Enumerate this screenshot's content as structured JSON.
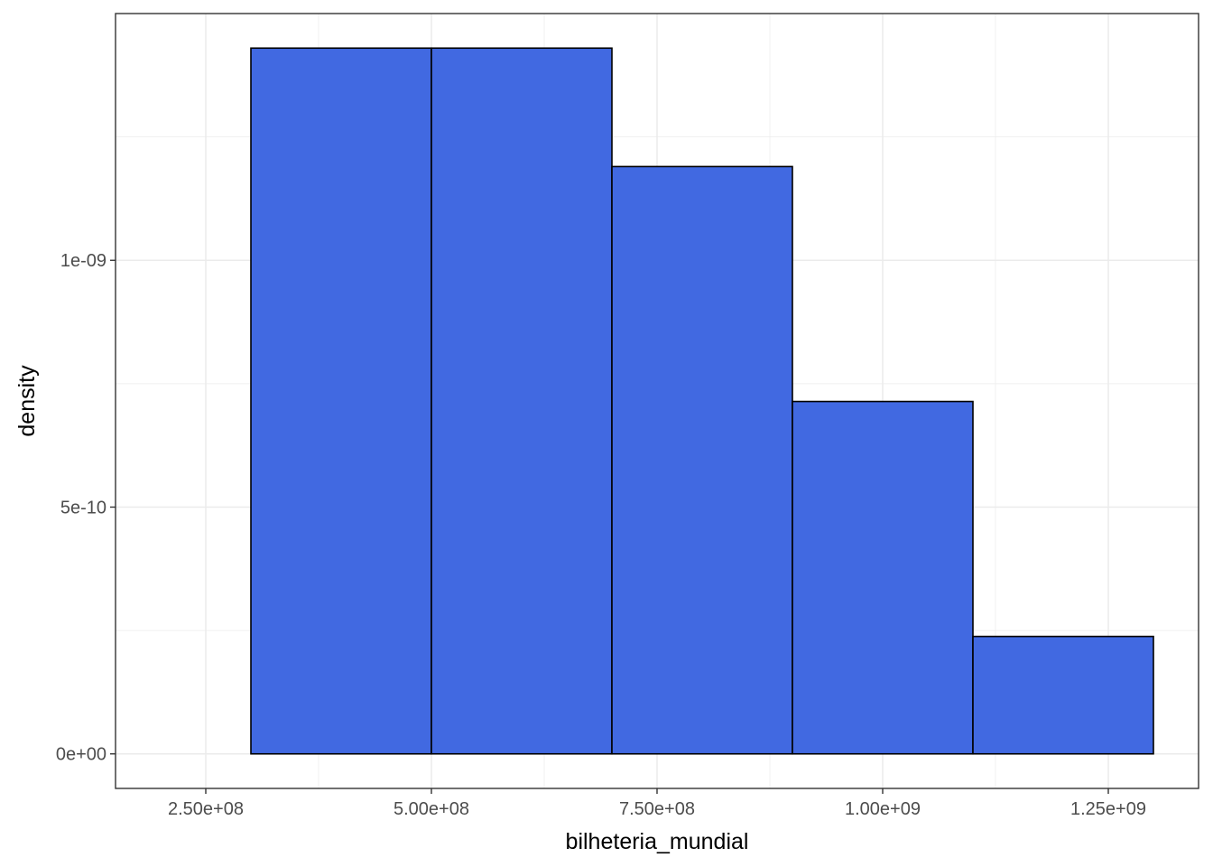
{
  "chart_data": {
    "type": "bar",
    "subtype": "histogram",
    "xlabel": "bilheteria_mundial",
    "ylabel": "density",
    "xlim": [
      150000000,
      1350000000
    ],
    "ylim": [
      -7e-11,
      1.5e-09
    ],
    "bins": [
      {
        "x0": 300000000,
        "x1": 500000000,
        "density": 1.43e-09
      },
      {
        "x0": 500000000,
        "x1": 700000000,
        "density": 1.43e-09
      },
      {
        "x0": 700000000,
        "x1": 900000000,
        "density": 1.19e-09
      },
      {
        "x0": 900000000,
        "x1": 1100000000,
        "density": 7.14e-10
      },
      {
        "x0": 1100000000,
        "x1": 1300000000,
        "density": 2.38e-10
      }
    ],
    "x_ticks": [
      {
        "value": 250000000,
        "label": "2.50e+08"
      },
      {
        "value": 500000000,
        "label": "5.00e+08"
      },
      {
        "value": 750000000,
        "label": "7.50e+08"
      },
      {
        "value": 1000000000,
        "label": "1.00e+09"
      },
      {
        "value": 1250000000,
        "label": "1.25e+09"
      }
    ],
    "y_ticks": [
      {
        "value": 0,
        "label": "0e+00"
      },
      {
        "value": 5e-10,
        "label": "5e-10"
      },
      {
        "value": 1e-09,
        "label": "1e-09"
      }
    ],
    "grid": true,
    "colors": {
      "fill": "#4169e1",
      "outline": "#000000",
      "grid": "#ebebeb",
      "panel_border": "#333333"
    }
  }
}
